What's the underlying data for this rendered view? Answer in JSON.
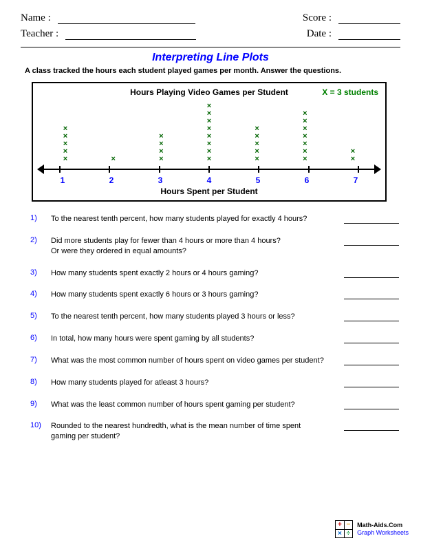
{
  "header": {
    "name_label": "Name :",
    "teacher_label": "Teacher :",
    "score_label": "Score :",
    "date_label": "Date :",
    "left_line_w": 200,
    "right_line_w": 90
  },
  "title": {
    "text": "Interpreting Line Plots",
    "color": "#0000ff",
    "fontsize": 16
  },
  "intro": "A class tracked the hours each student played games per month. Answer the questions.",
  "plot": {
    "title": "Hours Playing Video Games per Student",
    "legend_value": "X = 3 students",
    "legend_color": "#008000",
    "xlabel": "Hours Spent per Student",
    "tick_color": "#0000ff",
    "mark_char": "×",
    "mark_color": "#006400",
    "categories": [
      "1",
      "2",
      "3",
      "4",
      "5",
      "6",
      "7"
    ],
    "counts": [
      5,
      1,
      4,
      8,
      5,
      7,
      2
    ]
  },
  "q_color": "#0000ff",
  "questions": [
    {
      "n": "1)",
      "t": "To the nearest tenth percent, how many students played for exactly 4 hours?"
    },
    {
      "n": "2)",
      "t": "Did more students play for fewer than 4 hours or more than 4 hours?\nOr were they ordered in equal amounts?"
    },
    {
      "n": "3)",
      "t": "How many students spent exactly 2 hours or 4 hours gaming?"
    },
    {
      "n": "4)",
      "t": "How many students spent exactly 6 hours or 3 hours gaming?"
    },
    {
      "n": "5)",
      "t": "To the nearest tenth percent, how many students played 3 hours or less?"
    },
    {
      "n": "6)",
      "t": "In total, how many hours were spent gaming by all students?"
    },
    {
      "n": "7)",
      "t": "What was the most common number of hours spent on video games per student?"
    },
    {
      "n": "8)",
      "t": "How many students played for atleast 3 hours?"
    },
    {
      "n": "9)",
      "t": "What was the least common number of hours spent gaming per student?"
    },
    {
      "n": "10)",
      "t": "Rounded to the nearest hundredth, what is the mean number of time spent\ngaming per student?"
    }
  ],
  "footer": {
    "cells": [
      {
        "t": "+",
        "c": "#cc0000"
      },
      {
        "t": "−",
        "c": "#e69b00"
      },
      {
        "t": "×",
        "c": "#0066cc"
      },
      {
        "t": "÷",
        "c": "#009933"
      }
    ],
    "line1": "Math-Aids.Com",
    "line2": "Graph Worksheets",
    "line2_color": "#0000ff"
  }
}
